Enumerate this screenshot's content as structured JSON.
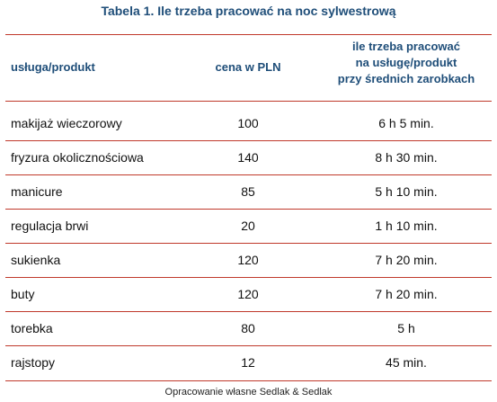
{
  "table": {
    "title": "Tabela 1. Ile trzeba pracować na noc sylwestrową",
    "headers": {
      "product": "usługa/produkt",
      "price": "cena w PLN",
      "time_line1": "ile trzeba pracować",
      "time_line2": "na usługę/produkt",
      "time_line3": "przy średnich zarobkach"
    },
    "rows": [
      {
        "product": "makijaż wieczorowy",
        "price": "100",
        "time": "6 h 5 min."
      },
      {
        "product": "fryzura okolicznościowa",
        "price": "140",
        "time": "8 h 30 min."
      },
      {
        "product": "manicure",
        "price": "85",
        "time": "5 h 10 min."
      },
      {
        "product": "regulacja brwi",
        "price": "20",
        "time": "1 h 10 min."
      },
      {
        "product": "sukienka",
        "price": "120",
        "time": "7 h 20 min."
      },
      {
        "product": "buty",
        "price": "120",
        "time": "7 h 20 min."
      },
      {
        "product": "torebka",
        "price": "80",
        "time": "5 h"
      },
      {
        "product": "rajstopy",
        "price": "12",
        "time": "45 min."
      }
    ],
    "footer": "Opracowanie własne Sedlak & Sedlak"
  },
  "colors": {
    "title": "#1f4e79",
    "rule": "#c0392b"
  }
}
